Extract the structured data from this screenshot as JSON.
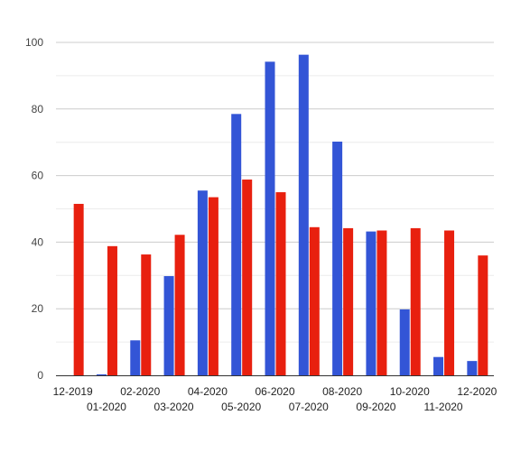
{
  "chart_data": {
    "type": "bar",
    "title": "",
    "xlabel": "",
    "ylabel": "",
    "ylim": [
      0,
      100
    ],
    "yticks": [
      0,
      20,
      40,
      60,
      80,
      100
    ],
    "grid": true,
    "minor_grid": true,
    "legend": "none",
    "categories": [
      "12-2019",
      "01-2020",
      "02-2020",
      "03-2020",
      "04-2020",
      "05-2020",
      "06-2020",
      "07-2020",
      "08-2020",
      "09-2020",
      "10-2020",
      "11-2020",
      "12-2020"
    ],
    "series": [
      {
        "color": "#3355d6",
        "values": [
          0,
          0.3,
          10.5,
          29.8,
          55.5,
          78.5,
          94.2,
          96.3,
          70.2,
          43.2,
          19.8,
          5.5,
          4.3
        ]
      },
      {
        "color": "#e8200f",
        "values": [
          51.5,
          38.8,
          36.3,
          42.2,
          53.5,
          58.8,
          55.0,
          44.5,
          44.2,
          43.5,
          44.2,
          43.5,
          36.0
        ]
      }
    ]
  }
}
